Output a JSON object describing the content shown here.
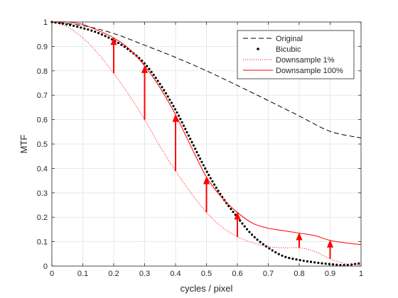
{
  "chart_data": {
    "type": "line",
    "title": "",
    "xlabel": "cycles / pixel",
    "ylabel": "MTF",
    "xlim": [
      0,
      1
    ],
    "ylim": [
      0,
      1
    ],
    "grid": true,
    "legend_position": "top-right",
    "x_ticks": [
      "0",
      "0.1",
      "0.2",
      "0.3",
      "0.4",
      "0.5",
      "0.6",
      "0.7",
      "0.8",
      "0.9",
      "1"
    ],
    "y_ticks": [
      "0",
      "0.1",
      "0.2",
      "0.3",
      "0.4",
      "0.5",
      "0.6",
      "0.7",
      "0.8",
      "0.9",
      "1"
    ],
    "series": [
      {
        "name": "Original",
        "style": "dashed",
        "color": "#000000",
        "x": [
          0,
          0.1,
          0.2,
          0.3,
          0.4,
          0.5,
          0.6,
          0.7,
          0.8,
          0.9,
          1.0
        ],
        "y": [
          1.0,
          0.985,
          0.953,
          0.905,
          0.855,
          0.8,
          0.74,
          0.678,
          0.615,
          0.552,
          0.525
        ]
      },
      {
        "name": "Bicubic",
        "style": "dotted-markers",
        "color": "#000000",
        "x": [
          0,
          0.05,
          0.1,
          0.15,
          0.2,
          0.25,
          0.3,
          0.35,
          0.4,
          0.45,
          0.5,
          0.55,
          0.6,
          0.65,
          0.7,
          0.75,
          0.8,
          0.85,
          0.9,
          0.95,
          1.0
        ],
        "y": [
          1.0,
          0.99,
          0.975,
          0.955,
          0.925,
          0.885,
          0.83,
          0.745,
          0.64,
          0.515,
          0.39,
          0.285,
          0.2,
          0.125,
          0.075,
          0.04,
          0.025,
          0.015,
          0.008,
          0.004,
          0.012
        ]
      },
      {
        "name": "Downsample 1%",
        "style": "dotted",
        "color": "#ff0000",
        "x": [
          0,
          0.05,
          0.1,
          0.15,
          0.2,
          0.25,
          0.3,
          0.35,
          0.4,
          0.45,
          0.5,
          0.55,
          0.6,
          0.65,
          0.7,
          0.75,
          0.8,
          0.85,
          0.9,
          0.95,
          1.0
        ],
        "y": [
          1.0,
          0.98,
          0.935,
          0.87,
          0.79,
          0.7,
          0.6,
          0.49,
          0.39,
          0.3,
          0.22,
          0.16,
          0.12,
          0.095,
          0.08,
          0.075,
          0.075,
          0.06,
          0.03,
          0.01,
          0.005
        ]
      },
      {
        "name": "Downsample 100%",
        "style": "solid",
        "color": "#ff0000",
        "x": [
          0,
          0.05,
          0.1,
          0.15,
          0.2,
          0.25,
          0.3,
          0.35,
          0.4,
          0.45,
          0.5,
          0.55,
          0.6,
          0.65,
          0.7,
          0.75,
          0.8,
          0.85,
          0.9,
          0.95,
          1.0
        ],
        "y": [
          1.0,
          1.0,
          0.99,
          0.965,
          0.935,
          0.89,
          0.82,
          0.73,
          0.62,
          0.49,
          0.365,
          0.28,
          0.22,
          0.175,
          0.155,
          0.145,
          0.135,
          0.125,
          0.105,
          0.095,
          0.088
        ]
      }
    ],
    "arrows": {
      "color": "#ff0000",
      "from": [
        {
          "x": 0.2,
          "y": 0.79
        },
        {
          "x": 0.3,
          "y": 0.6
        },
        {
          "x": 0.4,
          "y": 0.39
        },
        {
          "x": 0.5,
          "y": 0.22
        },
        {
          "x": 0.6,
          "y": 0.12
        },
        {
          "x": 0.8,
          "y": 0.075
        },
        {
          "x": 0.9,
          "y": 0.03
        }
      ],
      "to": [
        {
          "x": 0.2,
          "y": 0.935
        },
        {
          "x": 0.3,
          "y": 0.82
        },
        {
          "x": 0.4,
          "y": 0.62
        },
        {
          "x": 0.5,
          "y": 0.365
        },
        {
          "x": 0.6,
          "y": 0.22
        },
        {
          "x": 0.8,
          "y": 0.135
        },
        {
          "x": 0.9,
          "y": 0.105
        }
      ]
    }
  }
}
